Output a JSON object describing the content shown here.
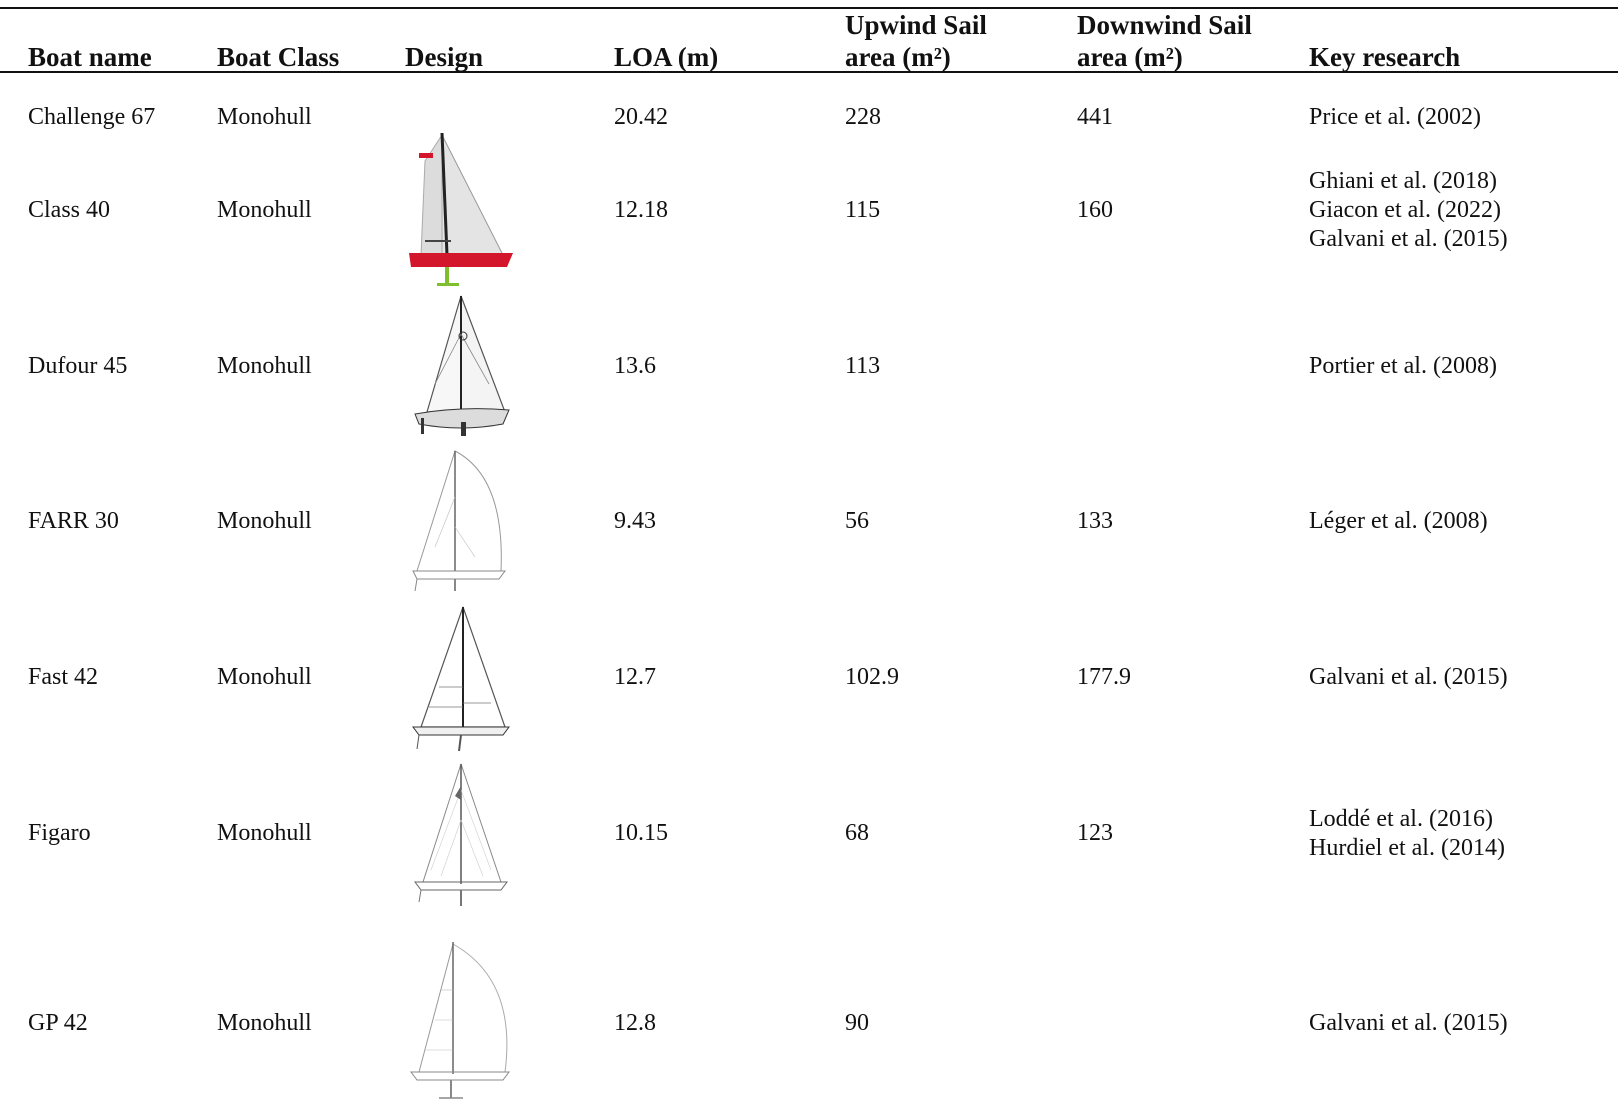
{
  "table": {
    "headers": {
      "boat_name": "Boat name",
      "boat_class": "Boat Class",
      "design": "Design",
      "loa": "LOA (m)",
      "upwind_line1": "Upwind Sail",
      "upwind_line2": "area (m²)",
      "downwind_line1": "Downwind Sail",
      "downwind_line2": "area (m²)",
      "key_research": "Key research"
    },
    "rows": [
      {
        "boat_name": "Challenge 67",
        "boat_class": "Monohull",
        "design_icon": "",
        "loa": "20.42",
        "upwind": "228",
        "downwind": "441",
        "research": [
          "Price et al. (2002)"
        ]
      },
      {
        "boat_name": "Class 40",
        "boat_class": "Monohull",
        "design_icon": "class40-sailboat-drawing",
        "loa": "12.18",
        "upwind": "115",
        "downwind": "160",
        "research": [
          "Ghiani et al. (2018)",
          "Giacon et al. (2022)",
          "Galvani et al. (2015)"
        ]
      },
      {
        "boat_name": "Dufour 45",
        "boat_class": "Monohull",
        "design_icon": "dufour45-sailboat-drawing",
        "loa": "13.6",
        "upwind": "113",
        "downwind": "",
        "research": [
          "Portier et al. (2008)"
        ]
      },
      {
        "boat_name": "FARR 30",
        "boat_class": "Monohull",
        "design_icon": "farr30-sailboat-drawing",
        "loa": "9.43",
        "upwind": "56",
        "downwind": "133",
        "research": [
          "Léger et al. (2008)"
        ]
      },
      {
        "boat_name": "Fast 42",
        "boat_class": "Monohull",
        "design_icon": "fast42-sailboat-drawing",
        "loa": "12.7",
        "upwind": "102.9",
        "downwind": "177.9",
        "research": [
          "Galvani et al. (2015)"
        ]
      },
      {
        "boat_name": "Figaro",
        "boat_class": "Monohull",
        "design_icon": "figaro-sailboat-drawing",
        "loa": "10.15",
        "upwind": "68",
        "downwind": "123",
        "research": [
          "Loddé et al. (2016)",
          "Hurdiel et al. (2014)"
        ]
      },
      {
        "boat_name": "GP 42",
        "boat_class": "Monohull",
        "design_icon": "gp42-sailboat-drawing",
        "loa": "12.8",
        "upwind": "90",
        "downwind": "",
        "research": [
          "Galvani et al. (2015)"
        ]
      }
    ]
  },
  "colors": {
    "class40_hull": "#d4162c",
    "class40_keel": "#7fbf2e",
    "rule": "#111111"
  }
}
